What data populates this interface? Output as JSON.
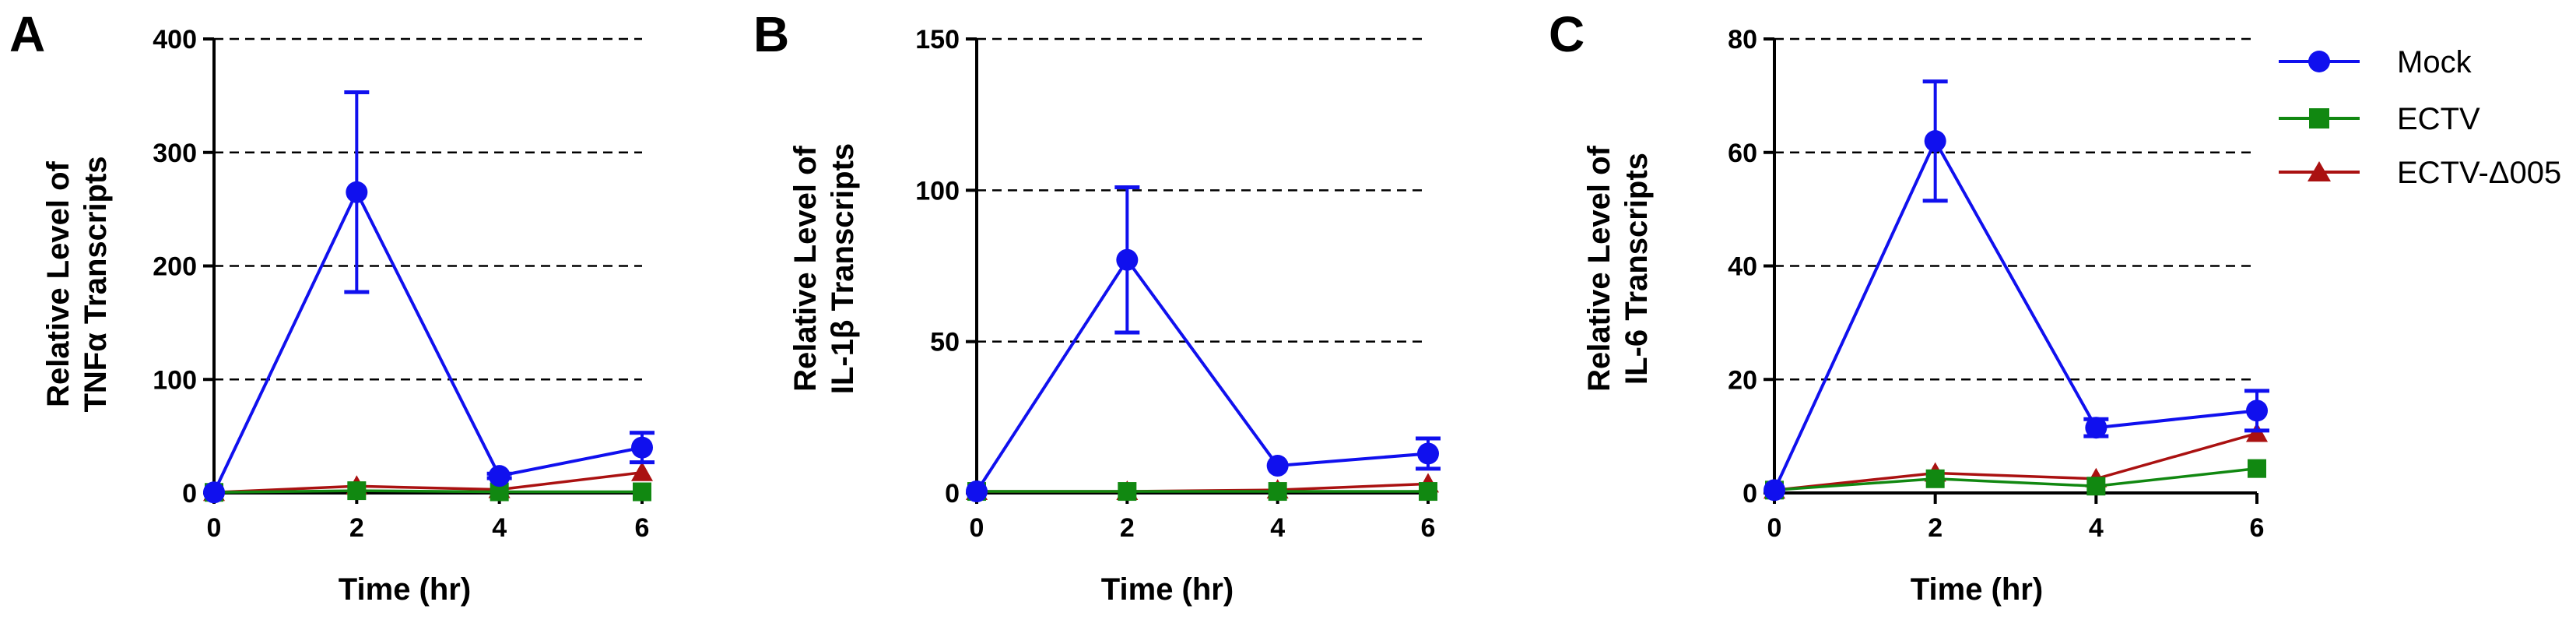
{
  "chart_data": [
    {
      "type": "line",
      "panel_label": "A",
      "x": [
        0,
        2,
        4,
        6
      ],
      "xlabel": "Time (hr)",
      "ylabel": [
        "Relative Level of",
        "TNFα Transcripts"
      ],
      "xlim": [
        0,
        6
      ],
      "ylim": [
        0,
        400
      ],
      "x_ticks": [
        0,
        2,
        4,
        6
      ],
      "y_ticks": [
        0,
        100,
        200,
        300,
        400
      ],
      "grid": "horizontal dashed",
      "series": [
        {
          "name": "Mock",
          "values": [
            0.5,
            265,
            15,
            40
          ],
          "errors": [
            0,
            88,
            2,
            13
          ]
        },
        {
          "name": "ECTV",
          "values": [
            0.5,
            2,
            1,
            1
          ],
          "errors": [
            0,
            0,
            0,
            0
          ]
        },
        {
          "name": "ECTV-Δ005",
          "values": [
            0.5,
            6,
            3,
            18
          ],
          "errors": [
            0,
            0,
            0,
            0
          ]
        }
      ]
    },
    {
      "type": "line",
      "panel_label": "B",
      "x": [
        0,
        2,
        4,
        6
      ],
      "xlabel": "Time (hr)",
      "ylabel": [
        "Relative Level of",
        "IL-1β Transcripts"
      ],
      "xlim": [
        0,
        6
      ],
      "ylim": [
        0,
        150
      ],
      "x_ticks": [
        0,
        2,
        4,
        6
      ],
      "y_ticks": [
        0,
        50,
        100,
        150
      ],
      "grid": "horizontal dashed",
      "series": [
        {
          "name": "Mock",
          "values": [
            0.5,
            77,
            9,
            13
          ],
          "errors": [
            0,
            24,
            0,
            5
          ]
        },
        {
          "name": "ECTV",
          "values": [
            0.5,
            0.5,
            0.5,
            0.5
          ],
          "errors": [
            0,
            0,
            0,
            0
          ]
        },
        {
          "name": "ECTV-Δ005",
          "values": [
            0.5,
            0.5,
            1,
            3
          ],
          "errors": [
            0,
            0,
            0,
            0
          ]
        }
      ]
    },
    {
      "type": "line",
      "panel_label": "C",
      "x": [
        0,
        2,
        4,
        6
      ],
      "xlabel": "Time (hr)",
      "ylabel": [
        "Relative Level of",
        "IL-6 Transcripts"
      ],
      "xlim": [
        0,
        6
      ],
      "ylim": [
        0,
        80
      ],
      "x_ticks": [
        0,
        2,
        4,
        6
      ],
      "y_ticks": [
        0,
        20,
        40,
        60,
        80
      ],
      "grid": "horizontal dashed",
      "series": [
        {
          "name": "Mock",
          "values": [
            0.5,
            62,
            11.5,
            14.5
          ],
          "errors": [
            0,
            10.5,
            1.5,
            3.5
          ]
        },
        {
          "name": "ECTV",
          "values": [
            0.5,
            2.5,
            1.2,
            4.3
          ],
          "errors": [
            0,
            0,
            0,
            0
          ]
        },
        {
          "name": "ECTV-Δ005",
          "values": [
            0.5,
            3.5,
            2.5,
            10.5
          ],
          "errors": [
            0,
            0,
            0,
            0
          ]
        }
      ]
    }
  ],
  "legend": {
    "placement": "top-right",
    "items": [
      {
        "label": "Mock",
        "color": "#1010ee",
        "marker": "circle"
      },
      {
        "label": "ECTV",
        "color": "#118811",
        "marker": "square"
      },
      {
        "label": "ECTV-Δ005",
        "color": "#aa1111",
        "marker": "triangle"
      }
    ]
  }
}
